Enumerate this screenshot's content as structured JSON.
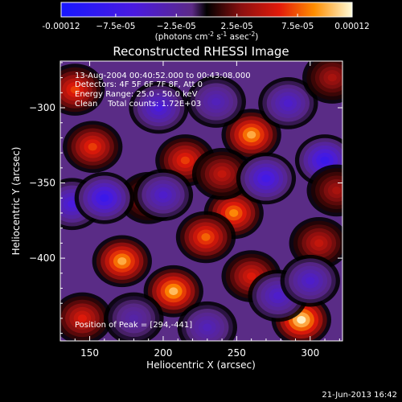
{
  "chart_data": {
    "type": "heatmap",
    "title": "Reconstructed RHESSI Image",
    "xlabel": "Heliocentric X (arcsec)",
    "ylabel": "Heliocentric Y (arcsec)",
    "xlim": [
      130,
      322
    ],
    "ylim": [
      -455,
      -269
    ],
    "x_ticks": [
      150,
      200,
      250,
      300
    ],
    "y_ticks": [
      -300,
      -350,
      -400
    ],
    "colorbar": {
      "min": -0.00012,
      "max": 0.00012,
      "ticks": [
        {
          "value": -0.00012,
          "label": "-0.00012"
        },
        {
          "value": -7.5e-05,
          "label": "−7.5e-05"
        },
        {
          "value": -2.5e-05,
          "label": "−2.5e-05"
        },
        {
          "value": 2.5e-05,
          "label": "2.5e-05"
        },
        {
          "value": 7.5e-05,
          "label": "7.5e-05"
        },
        {
          "value": 0.00012,
          "label": "0.00012"
        }
      ],
      "units_prefix": "(photons cm",
      "units_sup1": "-2",
      "units_mid1": " s",
      "units_sup2": "-1",
      "units_mid2": " asec",
      "units_sup3": "-2",
      "units_suffix": ")"
    },
    "annotations": [
      "13-Aug-2004 00:40:52.000 to 00:43:08.000",
      "Detectors: 4F 5F 6F 7F 8F, Att 0",
      "Energy Range: 25.0 - 50.0 keV",
      "Clean    Total counts: 1.72E+03"
    ],
    "peak_label": "Position of Peak = [294,-441]",
    "sources": [
      {
        "x": 294,
        "y": -441,
        "value": 0.00012
      },
      {
        "x": 207,
        "y": -422,
        "value": 0.000105
      },
      {
        "x": 172,
        "y": -402,
        "value": 0.0001
      },
      {
        "x": 260,
        "y": -318,
        "value": 0.0001
      },
      {
        "x": 248,
        "y": -370,
        "value": 9e-05
      },
      {
        "x": 152,
        "y": -326,
        "value": 7e-05
      },
      {
        "x": 215,
        "y": -335,
        "value": 7e-05
      },
      {
        "x": 229,
        "y": -386,
        "value": 8e-05
      },
      {
        "x": 260,
        "y": -412,
        "value": 6e-05
      },
      {
        "x": 140,
        "y": -288,
        "value": 7e-05
      },
      {
        "x": 306,
        "y": -390,
        "value": 5e-05
      },
      {
        "x": 240,
        "y": -344,
        "value": 5e-05
      },
      {
        "x": 190,
        "y": -360,
        "value": 4e-05
      },
      {
        "x": 145,
        "y": -440,
        "value": 6e-05
      },
      {
        "x": 285,
        "y": -297,
        "value": -5e-05
      },
      {
        "x": 197,
        "y": -300,
        "value": -6e-05
      },
      {
        "x": 236,
        "y": -296,
        "value": -4e-05
      },
      {
        "x": 138,
        "y": -364,
        "value": -6e-05
      },
      {
        "x": 160,
        "y": -360,
        "value": -8e-05
      },
      {
        "x": 200,
        "y": -358,
        "value": -5e-05
      },
      {
        "x": 270,
        "y": -347,
        "value": -7e-05
      },
      {
        "x": 310,
        "y": -335,
        "value": -8e-05
      },
      {
        "x": 278,
        "y": -425,
        "value": -5e-05
      },
      {
        "x": 300,
        "y": -415,
        "value": -5e-05
      },
      {
        "x": 230,
        "y": -446,
        "value": -4e-05
      },
      {
        "x": 180,
        "y": -440,
        "value": -3e-05
      },
      {
        "x": 315,
        "y": -280,
        "value": 4e-05
      },
      {
        "x": 318,
        "y": -355,
        "value": 4e-05
      }
    ]
  },
  "footer": {
    "timestamp": "21-Jun-2013 16:42"
  }
}
